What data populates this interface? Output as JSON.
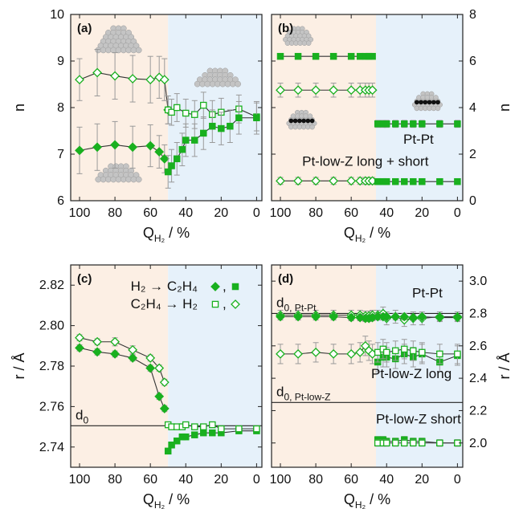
{
  "colors": {
    "hydrogen_region": "#fcefe4",
    "ethylene_region": "#e6f1fa",
    "series": "#19b01f",
    "errorbar": "#9a9a9a",
    "line": "#333333",
    "atom": "#c4c4c4",
    "low_z": "#111111"
  },
  "icons": [
    "pt-cluster-flat-icon",
    "pt-cluster-tall-icon",
    "pt-cluster-with-low-z-atoms-icon"
  ],
  "chart_data": [
    {
      "id": "a",
      "type": "scatter",
      "panel_label": "(a)",
      "xlabel": "Q",
      "xlabel_sub": "H₂",
      "xlabel_unit": " / %",
      "ylabel": "n",
      "ylabel_side": "left",
      "xlim": [
        105,
        -3
      ],
      "ylim": [
        6,
        10
      ],
      "xticks": [
        "100",
        "80",
        "60",
        "40",
        "20",
        "0"
      ],
      "yticks": [
        "6",
        "7",
        "8",
        "9",
        "10"
      ],
      "shade_split": 50,
      "series": [
        {
          "marker": "diamond-open",
          "x": [
            100,
            90,
            80,
            70,
            60,
            55,
            52,
            50
          ],
          "y": [
            8.6,
            8.75,
            8.68,
            8.62,
            8.6,
            8.65,
            8.6,
            7.95
          ],
          "err": [
            0.45,
            0.5,
            0.5,
            0.5,
            0.5,
            0.45,
            0.45,
            0.3
          ]
        },
        {
          "marker": "square-open",
          "x": [
            50,
            48,
            45,
            40,
            35,
            30,
            25,
            20,
            10,
            0
          ],
          "y": [
            7.95,
            7.9,
            8.0,
            7.88,
            7.85,
            8.05,
            7.85,
            7.9,
            7.97,
            7.8
          ],
          "err": [
            0.3,
            0.28,
            0.3,
            0.3,
            0.3,
            0.28,
            0.3,
            0.3,
            0.3,
            0.3
          ]
        },
        {
          "marker": "diamond-filled",
          "x": [
            100,
            90,
            80,
            70,
            60,
            55,
            52
          ],
          "y": [
            7.08,
            7.15,
            7.2,
            7.15,
            7.18,
            7.05,
            6.9
          ],
          "err": [
            0.5,
            0.5,
            0.5,
            0.45,
            0.45,
            0.35,
            0.3
          ]
        },
        {
          "marker": "square-filled",
          "x": [
            50,
            48,
            45,
            42,
            40,
            35,
            30,
            25,
            20,
            15,
            10,
            0
          ],
          "y": [
            6.62,
            6.75,
            6.9,
            7.1,
            7.3,
            7.3,
            7.45,
            7.6,
            7.55,
            7.6,
            7.78,
            7.78
          ],
          "err": [
            0.35,
            0.35,
            0.35,
            0.35,
            0.35,
            0.35,
            0.35,
            0.35,
            0.35,
            0.35,
            0.35,
            0.35
          ]
        }
      ],
      "clusters": [
        {
          "kind": "tall",
          "at": [
            78,
            9.42
          ]
        },
        {
          "kind": "flat",
          "at": [
            22,
            8.6
          ]
        },
        {
          "kind": "flat",
          "at": [
            78,
            6.55
          ]
        }
      ],
      "labels": []
    },
    {
      "id": "b",
      "type": "scatter",
      "panel_label": "(b)",
      "xlabel": "Q",
      "xlabel_sub": "H₂",
      "xlabel_unit": " / %",
      "ylabel": "n",
      "ylabel_side": "right",
      "xlim": [
        105,
        -3
      ],
      "ylim": [
        0,
        8
      ],
      "xticks": [
        "100",
        "80",
        "60",
        "40",
        "20",
        "0"
      ],
      "yticks": [
        "0",
        "2",
        "4",
        "6",
        "8"
      ],
      "shade_split": 46,
      "series": [
        {
          "marker": "square-filled",
          "x": [
            100,
            90,
            80,
            70,
            60,
            55,
            52,
            50,
            48
          ],
          "y": [
            6.2,
            6.2,
            6.2,
            6.2,
            6.2,
            6.2,
            6.2,
            6.2,
            6.2
          ],
          "err": [
            0.05,
            0.05,
            0.05,
            0.05,
            0.05,
            0.05,
            0.05,
            0.05,
            0.05
          ]
        },
        {
          "marker": "square-filled",
          "x": [
            45,
            42,
            40,
            35,
            30,
            25,
            20,
            10,
            0
          ],
          "y": [
            3.3,
            3.3,
            3.3,
            3.3,
            3.3,
            3.3,
            3.3,
            3.3,
            3.3
          ],
          "err": [
            0.15,
            0.15,
            0.15,
            0.15,
            0.15,
            0.15,
            0.15,
            0.15,
            0.15
          ]
        },
        {
          "marker": "diamond-open",
          "x": [
            100,
            90,
            80,
            70,
            60,
            55,
            52,
            50,
            48
          ],
          "y": [
            4.75,
            4.75,
            4.75,
            4.75,
            4.75,
            4.75,
            4.75,
            4.75,
            4.75
          ],
          "err": [
            0.3,
            0.3,
            0.3,
            0.3,
            0.3,
            0.3,
            0.3,
            0.3,
            0.3
          ]
        },
        {
          "marker": "diamond-open",
          "x": [
            100,
            90,
            80,
            70,
            60,
            55,
            52,
            50,
            48
          ],
          "y": [
            0.85,
            0.85,
            0.85,
            0.85,
            0.85,
            0.85,
            0.85,
            0.85,
            0.85
          ],
          "err": [
            0.15,
            0.15,
            0.15,
            0.15,
            0.15,
            0.15,
            0.15,
            0.15,
            0.15
          ]
        },
        {
          "marker": "square-filled",
          "x": [
            45,
            42,
            40,
            35,
            30,
            25,
            20,
            10,
            0
          ],
          "y": [
            0.82,
            0.82,
            0.82,
            0.82,
            0.82,
            0.82,
            0.82,
            0.82,
            0.82
          ],
          "err": [
            0.12,
            0.12,
            0.12,
            0.12,
            0.12,
            0.12,
            0.12,
            0.12,
            0.12
          ]
        }
      ],
      "clusters": [
        {
          "kind": "small",
          "at": [
            90,
            7.0
          ]
        },
        {
          "kind": "lowz",
          "at": [
            88,
            3.4
          ]
        },
        {
          "kind": "lowz",
          "at": [
            17,
            4.2
          ]
        }
      ],
      "labels": [
        {
          "text": "Pt-Pt",
          "at": [
            22,
            2.45
          ]
        },
        {
          "text": "Pt-low-Z long + short",
          "at": [
            52,
            1.5
          ]
        }
      ]
    },
    {
      "id": "c",
      "type": "scatter",
      "panel_label": "(c)",
      "xlabel": "Q",
      "xlabel_sub": "H₂",
      "xlabel_unit": " / %",
      "ylabel": "r / Å",
      "ylabel_side": "left",
      "xlim": [
        105,
        -3
      ],
      "ylim": [
        2.73,
        2.83
      ],
      "xticks": [
        "100",
        "80",
        "60",
        "40",
        "20",
        "0"
      ],
      "yticks": [
        "2.74",
        "2.76",
        "2.78",
        "2.80",
        "2.82"
      ],
      "shade_split": 50,
      "series": [
        {
          "marker": "diamond-open",
          "x": [
            100,
            90,
            80,
            70,
            60,
            55,
            52
          ],
          "y": [
            2.794,
            2.792,
            2.792,
            2.788,
            2.784,
            2.779,
            2.772
          ],
          "err": [
            0.0015,
            0.0015,
            0.002,
            0.002,
            0.0015,
            0.0015,
            0.0015
          ]
        },
        {
          "marker": "diamond-filled",
          "x": [
            100,
            90,
            80,
            70,
            60,
            55,
            52
          ],
          "y": [
            2.789,
            2.787,
            2.786,
            2.784,
            2.779,
            2.765,
            2.759
          ],
          "err": [
            0.0015,
            0.0015,
            0.0015,
            0.0015,
            0.0015,
            0.0015,
            0.0015
          ]
        },
        {
          "marker": "square-filled",
          "x": [
            50,
            48,
            45,
            42,
            40,
            35,
            30,
            25,
            20,
            10,
            0
          ],
          "y": [
            2.738,
            2.741,
            2.743,
            2.745,
            2.745,
            2.746,
            2.747,
            2.747,
            2.747,
            2.748,
            2.748
          ],
          "err": [
            0.0012,
            0.0012,
            0.0012,
            0.0012,
            0.0012,
            0.0012,
            0.0012,
            0.0012,
            0.0012,
            0.0012,
            0.0012
          ]
        },
        {
          "marker": "square-open",
          "x": [
            50,
            48,
            45,
            42,
            40,
            35,
            30,
            25,
            20,
            10,
            0
          ],
          "y": [
            2.751,
            2.75,
            2.75,
            2.75,
            2.751,
            2.75,
            2.75,
            2.751,
            2.749,
            2.749,
            2.749
          ],
          "err": [
            0.0012,
            0.0012,
            0.0012,
            0.0012,
            0.0012,
            0.0012,
            0.0012,
            0.0012,
            0.0012,
            0.0012,
            0.0012
          ]
        }
      ],
      "hlines": [
        {
          "y": 2.7505,
          "label": "d",
          "label_sub": "0"
        }
      ],
      "legend": [
        {
          "reactant": "H₂",
          "product": "C₂H₄",
          "markers": [
            "diamond-filled",
            "square-filled"
          ]
        },
        {
          "reactant": "C₂H₄",
          "product": "H₂",
          "markers": [
            "square-open",
            "diamond-open"
          ]
        }
      ],
      "labels": []
    },
    {
      "id": "d",
      "type": "scatter",
      "panel_label": "(d)",
      "xlabel": "Q",
      "xlabel_sub": "H₂",
      "xlabel_unit": " / %",
      "ylabel": "r / Å",
      "ylabel_side": "right",
      "xlim": [
        105,
        -3
      ],
      "ylim": [
        1.85,
        3.1
      ],
      "xticks": [
        "100",
        "80",
        "60",
        "40",
        "20",
        "0"
      ],
      "yticks": [
        "2.0",
        "2.2",
        "2.4",
        "2.6",
        "2.8",
        "3.0"
      ],
      "shade_split": 46,
      "series": [
        {
          "marker": "diamond-open",
          "x": [
            100,
            90,
            80,
            70,
            60,
            55,
            52,
            50,
            48,
            45,
            42,
            40,
            35,
            30,
            25,
            20,
            10,
            0
          ],
          "y": [
            2.79,
            2.79,
            2.79,
            2.79,
            2.79,
            2.79,
            2.785,
            2.785,
            2.79,
            2.79,
            2.8,
            2.77,
            2.78,
            2.76,
            2.77,
            2.77,
            2.78,
            2.78
          ],
          "err": [
            0.03,
            0.03,
            0.03,
            0.03,
            0.03,
            0.03,
            0.03,
            0.03,
            0.03,
            0.03,
            0.04,
            0.04,
            0.04,
            0.04,
            0.04,
            0.04,
            0.03,
            0.03
          ]
        },
        {
          "marker": "diamond-filled",
          "x": [
            100,
            90,
            80,
            70,
            60,
            55,
            52,
            50,
            48,
            45,
            42,
            40,
            35,
            30,
            25,
            20,
            10,
            0
          ],
          "y": [
            2.78,
            2.78,
            2.78,
            2.78,
            2.775,
            2.775,
            2.77,
            2.77,
            2.775,
            2.78,
            2.78,
            2.78,
            2.78,
            2.78,
            2.775,
            2.78,
            2.775,
            2.775
          ],
          "err": [
            0.02,
            0.02,
            0.02,
            0.02,
            0.02,
            0.02,
            0.02,
            0.02,
            0.02,
            0.02,
            0.02,
            0.02,
            0.02,
            0.02,
            0.02,
            0.02,
            0.02,
            0.02
          ]
        },
        {
          "marker": "diamond-open",
          "x": [
            100,
            90,
            80,
            70,
            60,
            55,
            52,
            50,
            48
          ],
          "y": [
            2.55,
            2.55,
            2.56,
            2.55,
            2.55,
            2.56,
            2.6,
            2.57,
            2.55
          ],
          "err": [
            0.06,
            0.06,
            0.06,
            0.06,
            0.06,
            0.06,
            0.06,
            0.06,
            0.06
          ]
        },
        {
          "marker": "square-filled",
          "x": [
            45,
            42,
            40,
            35,
            30,
            25,
            20,
            10,
            0
          ],
          "y": [
            2.5,
            2.53,
            2.53,
            2.52,
            2.55,
            2.53,
            2.55,
            2.5,
            2.54
          ],
          "err": [
            0.06,
            0.06,
            0.06,
            0.06,
            0.06,
            0.06,
            0.06,
            0.06,
            0.06
          ]
        },
        {
          "marker": "square-open",
          "x": [
            45,
            42,
            40,
            35,
            30,
            25,
            20,
            10,
            0
          ],
          "y": [
            2.56,
            2.58,
            2.56,
            2.57,
            2.58,
            2.57,
            2.56,
            2.55,
            2.55
          ],
          "err": [
            0.06,
            0.06,
            0.06,
            0.06,
            0.06,
            0.06,
            0.06,
            0.06,
            0.06
          ]
        },
        {
          "marker": "square-filled",
          "x": [
            45,
            42,
            40,
            35,
            30,
            25,
            20,
            10,
            0
          ],
          "y": [
            2.02,
            2.02,
            2.01,
            2.01,
            2.02,
            2.01,
            2.01,
            2.0,
            2.0
          ],
          "err": [
            0.02,
            0.02,
            0.02,
            0.02,
            0.02,
            0.02,
            0.02,
            0.02,
            0.02
          ]
        },
        {
          "marker": "square-open",
          "x": [
            45,
            42,
            40,
            35,
            30,
            25,
            20,
            10,
            0
          ],
          "y": [
            2.0,
            2.0,
            2.0,
            2.0,
            2.0,
            2.0,
            2.0,
            2.0,
            2.0
          ],
          "err": [
            0.02,
            0.02,
            0.02,
            0.02,
            0.02,
            0.02,
            0.02,
            0.02,
            0.02
          ]
        }
      ],
      "hlines": [
        {
          "y": 2.8,
          "label": "d",
          "label_sub": "0, Pt-Pt"
        },
        {
          "y": 2.25,
          "label": "d",
          "label_sub": "0, Pt-low-Z"
        }
      ],
      "labels": [
        {
          "text": "Pt-Pt",
          "at": [
            17,
            2.9
          ]
        },
        {
          "text": "Pt-low-Z long",
          "at": [
            26,
            2.4
          ]
        },
        {
          "text": "Pt-low-Z short",
          "at": [
            22,
            2.12
          ]
        }
      ]
    }
  ]
}
